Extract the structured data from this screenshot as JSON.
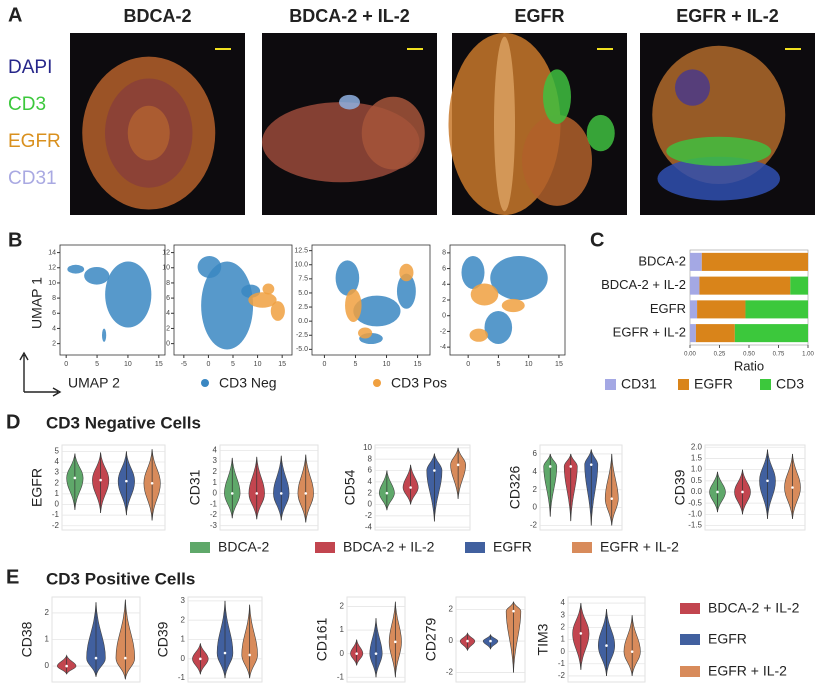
{
  "panel_labels": [
    "A",
    "B",
    "C",
    "D",
    "E"
  ],
  "images": {
    "titles": [
      "BDCA-2",
      "BDCA-2 + IL-2",
      "EGFR",
      "EGFR + IL-2"
    ],
    "channels": [
      {
        "name": "DAPI",
        "color": "#26268a"
      },
      {
        "name": "CD3",
        "color": "#3cc83c"
      },
      {
        "name": "EGFR",
        "color": "#d9901e"
      },
      {
        "name": "CD31",
        "color": "#a9a9e2"
      }
    ]
  },
  "chart_data": [
    {
      "type": "scatter",
      "x_label": "UMAP 2",
      "y_label": "UMAP 1",
      "series": [
        {
          "name": "CD3 Neg",
          "color": "#3a87c2"
        },
        {
          "name": "CD3 Pos",
          "color": "#f0a040"
        }
      ],
      "panels": [
        {
          "xlim": [
            -1,
            16
          ],
          "ylim": [
            0.5,
            15
          ],
          "xticks": [
            0,
            5,
            10,
            15
          ],
          "yticks": [
            2,
            4,
            6,
            8,
            10,
            12,
            14
          ]
        },
        {
          "xlim": [
            -7,
            17
          ],
          "ylim": [
            -1.5,
            13
          ],
          "xticks": [
            -5,
            0,
            5,
            10,
            15
          ],
          "yticks": [
            0,
            2,
            4,
            6,
            8,
            10,
            12
          ]
        },
        {
          "xlim": [
            -2,
            17
          ],
          "ylim": [
            -6,
            13.5
          ],
          "xticks": [
            0,
            5,
            10,
            15
          ],
          "yticks": [
            {
              "value": -5,
              "label": "-5.0"
            },
            -2.5,
            {
              "value": 0,
              "label": "0.0"
            },
            2.5,
            {
              "value": 5,
              "label": "5.0"
            },
            7.5,
            {
              "value": 10,
              "label": "10.0"
            },
            12.5
          ]
        },
        {
          "xlim": [
            -3,
            16
          ],
          "ylim": [
            -5,
            9
          ],
          "xticks": [
            0,
            5,
            10,
            15
          ],
          "yticks": [
            -4,
            -2,
            0,
            2,
            4,
            6,
            8
          ]
        }
      ]
    },
    {
      "type": "bar",
      "orientation": "horizontal",
      "stacked": true,
      "categories": [
        "BDCA-2",
        "BDCA-2 + IL-2",
        "EGFR",
        "EGFR + IL-2"
      ],
      "series": [
        {
          "name": "CD31",
          "color": "#a4a8e4",
          "values": [
            0.1,
            0.08,
            0.06,
            0.05
          ]
        },
        {
          "name": "EGFR",
          "color": "#d9841a",
          "values": [
            0.9,
            0.77,
            0.41,
            0.33
          ]
        },
        {
          "name": "CD3",
          "color": "#3cc83c",
          "values": [
            0,
            0.15,
            0.53,
            0.62
          ]
        }
      ],
      "xlim": [
        0,
        1
      ],
      "xticks": [
        {
          "value": 0,
          "label": "0.00"
        },
        {
          "value": 0.25,
          "label": "0.25"
        },
        {
          "value": 0.5,
          "label": "0.50"
        },
        {
          "value": 0.75,
          "label": "0.75"
        },
        {
          "value": 1,
          "label": "1.00"
        }
      ],
      "x_label": "Ratio"
    },
    {
      "type": "violin",
      "title": "CD3 Negative Cells",
      "groups": [
        {
          "name": "BDCA-2",
          "color": "#5fa86a"
        },
        {
          "name": "BDCA-2 + IL-2",
          "color": "#c2454f"
        },
        {
          "name": "EGFR",
          "color": "#41609f"
        },
        {
          "name": "EGFR + IL-2",
          "color": "#d88b5b"
        }
      ],
      "panels": [
        {
          "y_label": "EGFR",
          "ylim": [
            -2.4,
            5.6
          ],
          "yticks": [
            -2,
            -1,
            0,
            1,
            2,
            3,
            4,
            5
          ],
          "values": [
            {
              "min": -0.5,
              "median": 2.5,
              "max": 4.8
            },
            {
              "min": -0.8,
              "median": 2.3,
              "max": 4.9
            },
            {
              "min": -1,
              "median": 2.2,
              "max": 5
            },
            {
              "min": -1.5,
              "median": 2,
              "max": 5.2
            }
          ]
        },
        {
          "y_label": "CD31",
          "ylim": [
            -3.4,
            4.5
          ],
          "yticks": [
            -3,
            -2,
            -1,
            0,
            1,
            2,
            3,
            4
          ],
          "values": [
            {
              "min": -2.3,
              "median": 0,
              "max": 3.3
            },
            {
              "min": -2.4,
              "median": 0,
              "max": 3.4
            },
            {
              "min": -2.5,
              "median": 0,
              "max": 3.5
            },
            {
              "min": -2.7,
              "median": 0,
              "max": 3.6
            }
          ]
        },
        {
          "y_label": "CD54",
          "ylim": [
            -4.5,
            10.5
          ],
          "yticks": [
            -4,
            -2,
            0,
            2,
            4,
            6,
            8,
            10
          ],
          "values": [
            {
              "min": -1,
              "median": 2,
              "max": 6
            },
            {
              "min": 0,
              "median": 3,
              "max": 7
            },
            {
              "min": -3,
              "median": 6,
              "max": 9
            },
            {
              "min": 1,
              "median": 7,
              "max": 10
            }
          ]
        },
        {
          "y_label": "CD326",
          "ylim": [
            -2.5,
            7
          ],
          "yticks": [
            -2,
            0,
            2,
            4,
            6
          ],
          "values": [
            {
              "min": -1,
              "median": 4.6,
              "max": 6
            },
            {
              "min": -1.5,
              "median": 4.6,
              "max": 6
            },
            {
              "min": -2,
              "median": 4.8,
              "max": 6.5
            },
            {
              "min": -2,
              "median": 1,
              "max": 6
            }
          ]
        },
        {
          "y_label": "CD39",
          "ylim": [
            -1.7,
            2.1
          ],
          "yticks": [
            -1.5,
            {
              "value": -1,
              "label": "-1.0"
            },
            -0.5,
            {
              "value": 0,
              "label": "0.0"
            },
            0.5,
            {
              "value": 1,
              "label": "1.0"
            },
            1.5,
            {
              "value": 2,
              "label": "2.0"
            }
          ],
          "values": [
            {
              "min": -0.9,
              "median": 0,
              "max": 0.9
            },
            {
              "min": -1,
              "median": 0,
              "max": 1
            },
            {
              "min": -1.2,
              "median": 0.5,
              "max": 1.9
            },
            {
              "min": -1.2,
              "median": 0.2,
              "max": 1.7
            }
          ]
        }
      ]
    },
    {
      "type": "violin",
      "title": "CD3 Positive Cells",
      "groups": [
        {
          "name": "BDCA-2 + IL-2",
          "color": "#c2454f"
        },
        {
          "name": "EGFR",
          "color": "#41609f"
        },
        {
          "name": "EGFR + IL-2",
          "color": "#d88b5b"
        }
      ],
      "panels": [
        {
          "y_label": "CD38",
          "ylim": [
            -0.6,
            2.6
          ],
          "yticks": [
            0,
            1,
            2
          ],
          "values": [
            {
              "min": -0.3,
              "median": 0,
              "max": 0.4
            },
            {
              "min": -0.4,
              "median": 0.3,
              "max": 2.4
            },
            {
              "min": -0.5,
              "median": 0.3,
              "max": 2.5
            }
          ]
        },
        {
          "y_label": "CD39",
          "ylim": [
            -1.2,
            3.2
          ],
          "yticks": [
            -1,
            0,
            1,
            2,
            3
          ],
          "values": [
            {
              "min": -0.8,
              "median": 0,
              "max": 0.8
            },
            {
              "min": -1,
              "median": 0.3,
              "max": 3
            },
            {
              "min": -1,
              "median": 0.2,
              "max": 2.8
            }
          ]
        },
        {
          "y_label": "CD161",
          "ylim": [
            -1.2,
            2.4
          ],
          "yticks": [
            -1,
            0,
            1,
            2
          ],
          "values": [
            {
              "min": -0.5,
              "median": 0,
              "max": 0.6
            },
            {
              "min": -1,
              "median": 0,
              "max": 1.5
            },
            {
              "min": -1,
              "median": 0.5,
              "max": 2.2
            }
          ]
        },
        {
          "y_label": "CD279",
          "ylim": [
            -2.6,
            2.8
          ],
          "yticks": [
            -2,
            0,
            2
          ],
          "values": [
            {
              "min": -0.6,
              "median": 0,
              "max": 0.5
            },
            {
              "min": -0.5,
              "median": 0,
              "max": 0.4
            },
            {
              "min": -2,
              "median": 1.9,
              "max": 2.5
            }
          ]
        },
        {
          "y_label": "TIM3",
          "ylim": [
            -2.5,
            4.5
          ],
          "yticks": [
            -2,
            -1,
            0,
            1,
            2,
            3,
            4
          ],
          "values": [
            {
              "min": -1.5,
              "median": 1.5,
              "max": 4
            },
            {
              "min": -2,
              "median": 0.5,
              "max": 3.5
            },
            {
              "min": -2,
              "median": 0,
              "max": 3
            }
          ]
        }
      ]
    }
  ]
}
